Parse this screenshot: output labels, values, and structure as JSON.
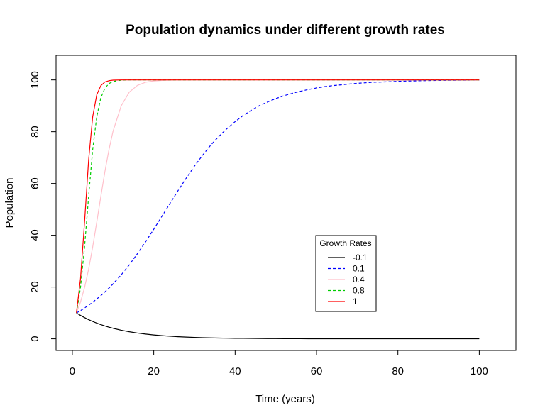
{
  "chart_data": {
    "type": "line",
    "title": "Population dynamics under different growth rates",
    "xlabel": "Time (years)",
    "ylabel": "Population",
    "xlim": [
      -4,
      109
    ],
    "ylim": [
      -4.5,
      109.5
    ],
    "xticks": [
      "0",
      "20",
      "40",
      "60",
      "80",
      "100"
    ],
    "yticks": [
      "0",
      "20",
      "40",
      "60",
      "80",
      "100"
    ],
    "grid": false,
    "legend": {
      "title": "Growth Rates",
      "placement": "bottom-right"
    },
    "x": [
      1,
      2,
      3,
      4,
      5,
      6,
      7,
      8,
      9,
      10,
      12,
      14,
      16,
      18,
      20,
      22,
      24,
      26,
      28,
      30,
      32,
      34,
      36,
      38,
      40,
      42,
      44,
      46,
      48,
      50,
      52,
      54,
      56,
      58,
      60,
      62,
      64,
      66,
      68,
      70,
      72,
      74,
      76,
      78,
      80,
      82,
      84,
      86,
      88,
      90,
      92,
      94,
      96,
      98,
      100
    ],
    "series": [
      {
        "name": "-0.1",
        "color": "#000000",
        "dash": "solid",
        "values": [
          10,
          9.05,
          8.19,
          7.41,
          6.7,
          6.07,
          5.49,
          4.97,
          4.49,
          4.07,
          3.33,
          2.73,
          2.23,
          1.83,
          1.5,
          1.22,
          1.0,
          0.82,
          0.67,
          0.55,
          0.45,
          0.37,
          0.3,
          0.25,
          0.2,
          0.17,
          0.14,
          0.11,
          0.09,
          0.07,
          0.06,
          0.05,
          0.04,
          0.03,
          0.03,
          0.02,
          0.02,
          0.02,
          0.01,
          0.01,
          0.01,
          0.01,
          0.01,
          0.01,
          0.0,
          0.0,
          0.0,
          0.0,
          0.0,
          0.0,
          0.0,
          0.0,
          0.0,
          0.0,
          0.0
        ]
      },
      {
        "name": "0.1",
        "color": "#0000ff",
        "dash": "dashed",
        "values": [
          10,
          10.9,
          11.9,
          13.0,
          14.1,
          15.4,
          16.7,
          18.1,
          19.6,
          21.2,
          24.7,
          28.6,
          32.9,
          37.5,
          42.3,
          47.3,
          52.3,
          57.3,
          62.1,
          66.7,
          70.9,
          74.8,
          78.2,
          81.2,
          83.9,
          86.3,
          88.3,
          90.1,
          91.5,
          92.8,
          93.9,
          94.8,
          95.6,
          96.3,
          96.9,
          97.4,
          97.8,
          98.1,
          98.4,
          98.7,
          98.9,
          99.1,
          99.2,
          99.3,
          99.45,
          99.55,
          99.6,
          99.7,
          99.75,
          99.8,
          99.85,
          99.88,
          99.9,
          99.92,
          99.94
        ]
      },
      {
        "name": "0.4",
        "color": "#ffc0cb",
        "dash": "solid",
        "values": [
          10,
          14.2,
          19.8,
          26.9,
          35.5,
          45.1,
          55.0,
          64.6,
          73.1,
          80.2,
          90.0,
          95.3,
          97.9,
          99.1,
          99.6,
          99.8,
          99.9,
          99.96,
          99.98,
          99.99,
          100,
          100,
          100,
          100,
          100,
          100,
          100,
          100,
          100,
          100,
          100,
          100,
          100,
          100,
          100,
          100,
          100,
          100,
          100,
          100,
          100,
          100,
          100,
          100,
          100,
          100,
          100,
          100,
          100,
          100,
          100,
          100,
          100,
          100,
          100
        ]
      },
      {
        "name": "0.8",
        "color": "#00cd00",
        "dash": "dashed",
        "values": [
          10,
          19.8,
          35.5,
          55.0,
          73.1,
          85.8,
          93.1,
          96.8,
          98.6,
          99.4,
          99.9,
          100,
          100,
          100,
          100,
          100,
          100,
          100,
          100,
          100,
          100,
          100,
          100,
          100,
          100,
          100,
          100,
          100,
          100,
          100,
          100,
          100,
          100,
          100,
          100,
          100,
          100,
          100,
          100,
          100,
          100,
          100,
          100,
          100,
          100,
          100,
          100,
          100,
          100,
          100,
          100,
          100,
          100,
          100,
          100
        ]
      },
      {
        "name": "1",
        "color": "#ff0000",
        "dash": "solid",
        "values": [
          10,
          23.2,
          45.1,
          69.1,
          85.8,
          94.3,
          97.8,
          99.2,
          99.7,
          99.9,
          100,
          100,
          100,
          100,
          100,
          100,
          100,
          100,
          100,
          100,
          100,
          100,
          100,
          100,
          100,
          100,
          100,
          100,
          100,
          100,
          100,
          100,
          100,
          100,
          100,
          100,
          100,
          100,
          100,
          100,
          100,
          100,
          100,
          100,
          100,
          100,
          100,
          100,
          100,
          100,
          100,
          100,
          100,
          100,
          100
        ]
      }
    ]
  }
}
